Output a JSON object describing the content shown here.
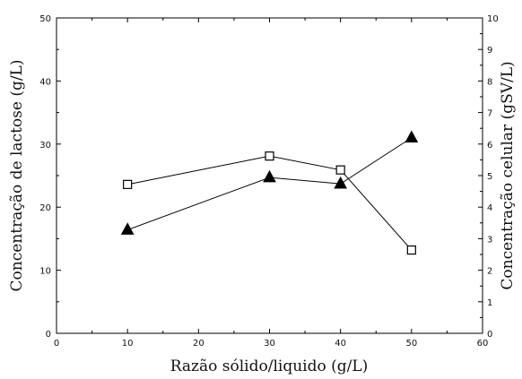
{
  "chart_data": {
    "type": "line",
    "xlabel": "Razão sólido/liquido (g/L)",
    "ylabel_left": "Concentração de lactose (g/L)",
    "ylabel_right": "Concentração celular (gSV/L)",
    "xlim": [
      0,
      60
    ],
    "ylim_left": [
      0,
      50
    ],
    "ylim_right": [
      0,
      10
    ],
    "x_ticks": [
      0,
      10,
      20,
      30,
      40,
      50,
      60
    ],
    "y_ticks_left": [
      0,
      10,
      20,
      30,
      40,
      50
    ],
    "y_ticks_right": [
      0,
      1,
      2,
      3,
      4,
      5,
      6,
      7,
      8,
      9,
      10
    ],
    "grid": false,
    "legend": "none",
    "series": [
      {
        "marker": "open-square",
        "axis": "left",
        "color": "#000000",
        "x": [
          10,
          30,
          40,
          50
        ],
        "y": [
          23.6,
          28.1,
          25.9,
          13.2
        ]
      },
      {
        "marker": "filled-triangle",
        "axis": "left",
        "color": "#000000",
        "x": [
          10,
          30,
          40,
          50
        ],
        "y": [
          16.4,
          24.7,
          23.7,
          31.0
        ]
      }
    ]
  }
}
